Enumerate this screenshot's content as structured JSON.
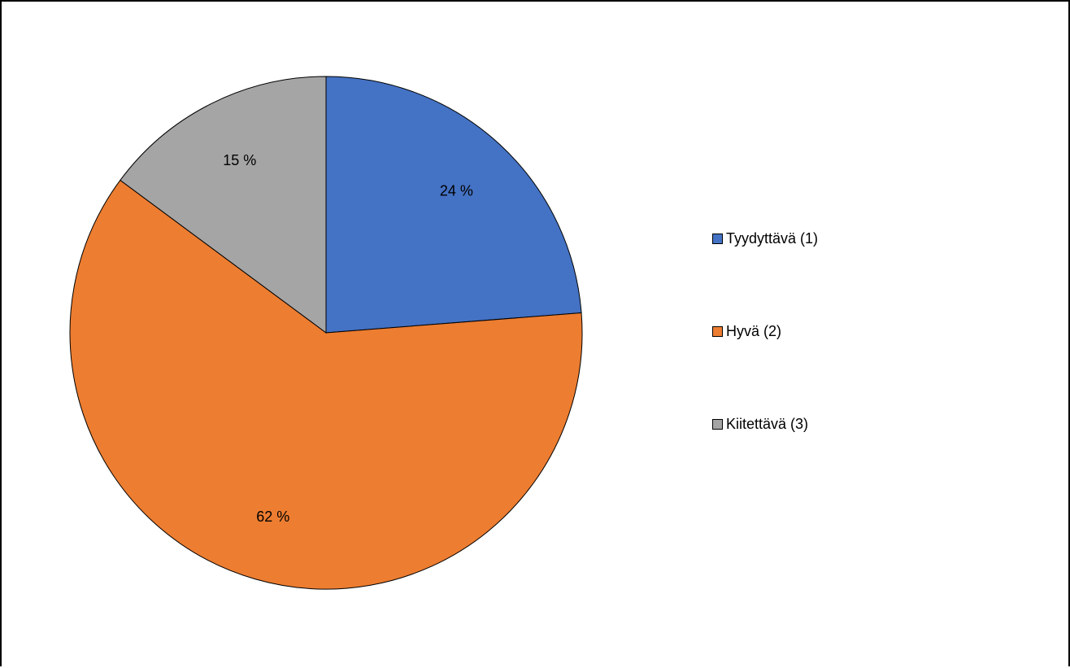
{
  "chart_data": {
    "type": "pie",
    "categories": [
      "Tyydyttävä (1)",
      "Hyvä (2)",
      "Kiitettävä (3)"
    ],
    "values": [
      24,
      62,
      15
    ],
    "data_labels": [
      "24 %",
      "62 %",
      "15 %"
    ],
    "colors": [
      "#4472C4",
      "#ED7D31",
      "#A5A5A5"
    ],
    "legend": {
      "placement": "right",
      "items": [
        {
          "label": "Tyydyttävä (1)",
          "color": "#4472C4"
        },
        {
          "label": "Hyvä (2)",
          "color": "#ED7D31"
        },
        {
          "label": "Kiitettävä (3)",
          "color": "#A5A5A5"
        }
      ]
    }
  }
}
